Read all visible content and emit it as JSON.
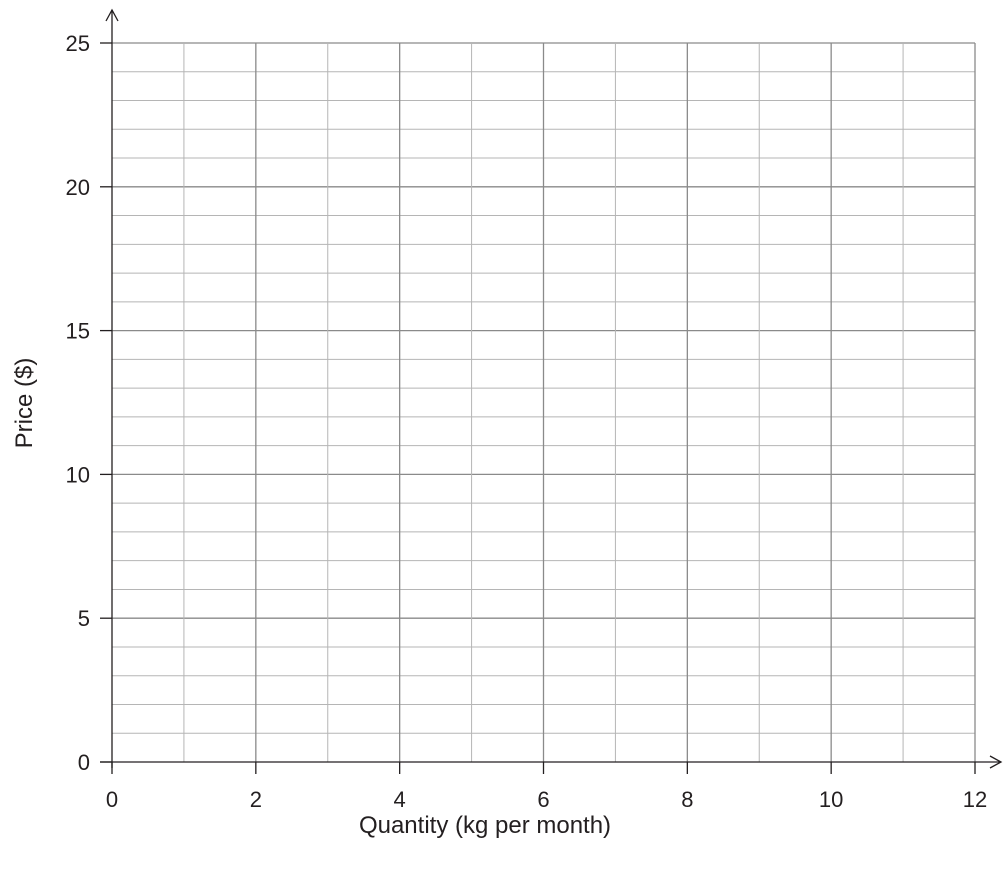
{
  "chart_data": {
    "type": "line",
    "title": "",
    "xlabel": "Quantity (kg per month)",
    "ylabel": "Price ($)",
    "xlim": [
      0,
      12
    ],
    "ylim": [
      0,
      25
    ],
    "x_ticks": [
      0,
      2,
      4,
      6,
      8,
      10,
      12
    ],
    "x_tick_labels": [
      "0",
      "2",
      "4",
      "6",
      "8",
      "10",
      "12"
    ],
    "y_ticks": [
      0,
      5,
      10,
      15,
      20,
      25
    ],
    "y_tick_labels": [
      "0",
      "5",
      "10",
      "15",
      "20",
      "25"
    ],
    "x_grid_step": 1,
    "y_grid_step": 1,
    "grid": true,
    "series": [],
    "colors": {
      "major_grid": "#8a8a8a",
      "minor_grid": "#b5b5b5",
      "axis": "#231f20"
    }
  }
}
